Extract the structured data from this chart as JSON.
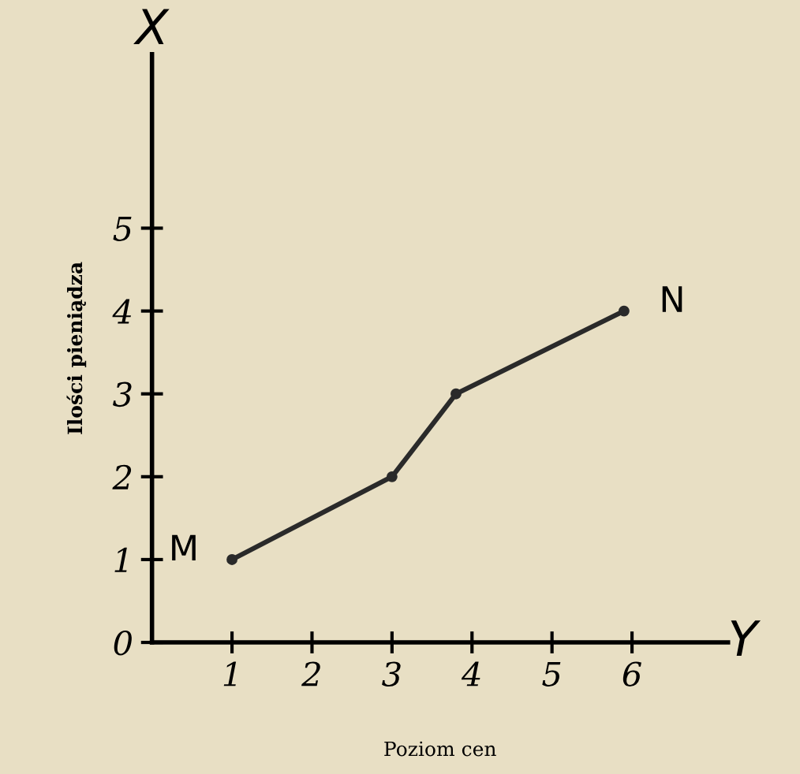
{
  "chart_data": {
    "type": "line",
    "xlabel": "Poziom cen",
    "ylabel": "Ilości pieniądza",
    "x": [
      1,
      3,
      3.8,
      5.9
    ],
    "series": [
      {
        "color": "#2a2a2a",
        "values": [
          1,
          2,
          3,
          4
        ]
      }
    ],
    "marker": "circle",
    "line_style": "solid",
    "xlim": [
      0,
      7.2
    ],
    "ylim": [
      0,
      7.1
    ],
    "xticks": [
      1,
      2,
      3,
      4,
      5,
      6
    ],
    "yticks": [
      0,
      1,
      2,
      3,
      4,
      5
    ],
    "grid": false,
    "legend": false,
    "annotations": [
      {
        "text": "M",
        "x": 1,
        "y": 1
      },
      {
        "text": "N",
        "x": 5.9,
        "y": 4
      },
      "X",
      "Y"
    ]
  }
}
